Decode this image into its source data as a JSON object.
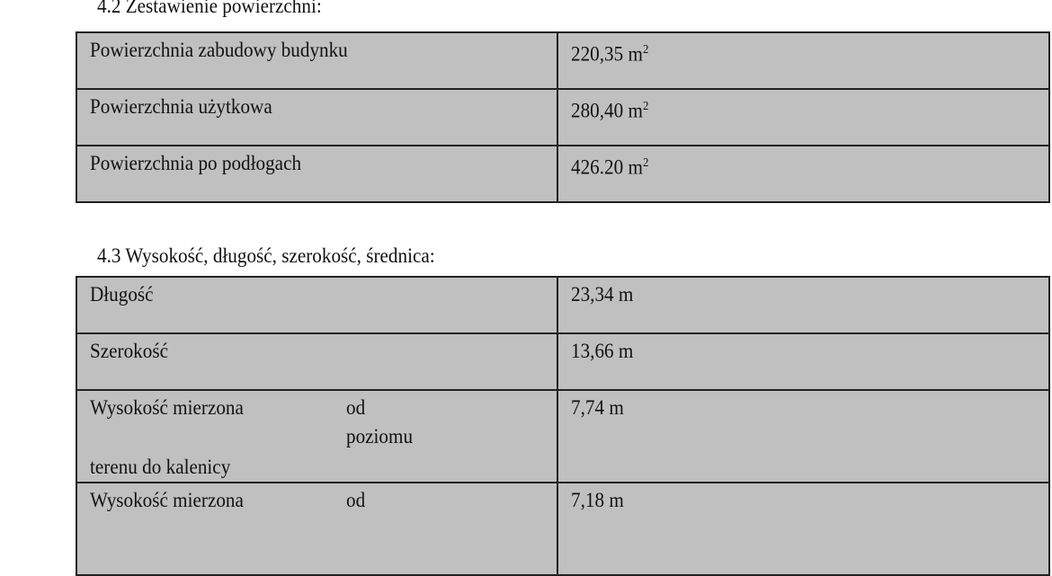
{
  "section_42": {
    "heading": "4.2 Zestawienie powierzchni:",
    "rows": [
      {
        "label": "Powierzchnia zabudowy budynku",
        "value": "220,35 m",
        "unit_sup": "2"
      },
      {
        "label": "Powierzchnia użytkowa",
        "value": "280,40 m",
        "unit_sup": "2"
      },
      {
        "label": "Powierzchnia po podłogach",
        "value": "426.20 m",
        "unit_sup": "2"
      }
    ]
  },
  "section_43": {
    "heading": "4.3 Wysokość, długość, szerokość, średnica:",
    "rows": [
      {
        "label": "Długość",
        "value": "23,34 m"
      },
      {
        "label": "Szerokość",
        "value": "13,66 m"
      },
      {
        "label_parts": [
          "Wysokość  mierzona",
          "od",
          "poziomu",
          "terenu do kalenicy"
        ],
        "value": "7,74 m"
      },
      {
        "label_parts": [
          "Wysokość  mierzona",
          "od"
        ],
        "value": "7,18 m"
      }
    ]
  }
}
